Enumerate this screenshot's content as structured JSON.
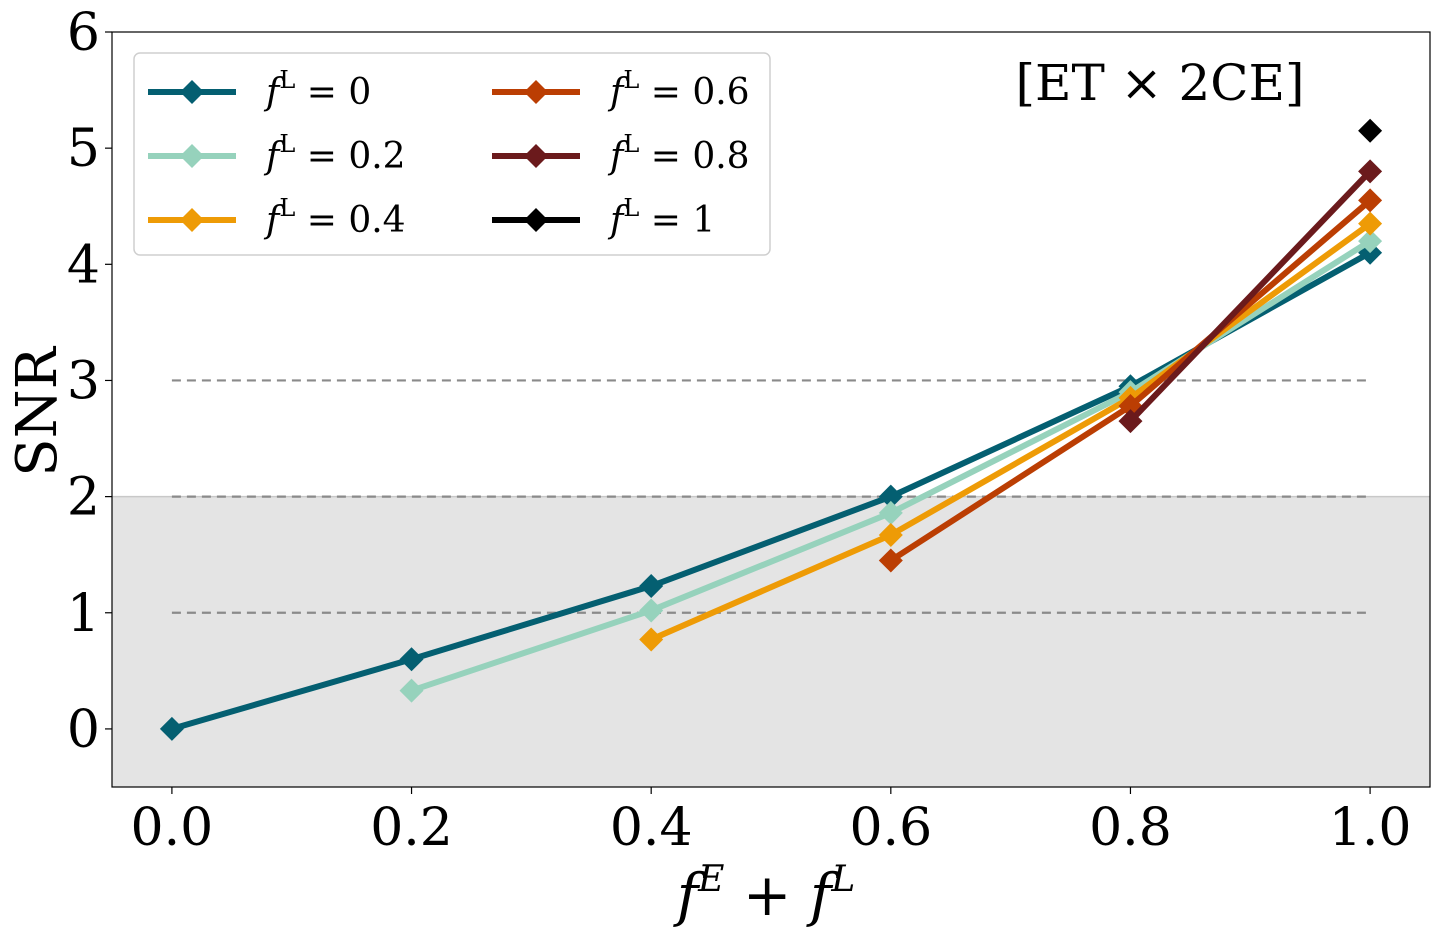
{
  "chart_data": {
    "type": "line",
    "annotation": "[ET × 2CE]",
    "xlabel": {
      "base1": "f",
      "sup1": "E",
      "op": " + ",
      "base2": "f",
      "sup2": "L"
    },
    "ylabel": "SNR",
    "xlim": [
      -0.05,
      1.05
    ],
    "ylim": [
      -0.5,
      6
    ],
    "xticks": [
      0.0,
      0.2,
      0.4,
      0.6,
      0.8,
      1.0
    ],
    "xtick_labels": [
      "0.0",
      "0.2",
      "0.4",
      "0.6",
      "0.8",
      "1.0"
    ],
    "yticks": [
      0,
      1,
      2,
      3,
      4,
      5,
      6
    ],
    "ytick_labels": [
      "0",
      "1",
      "2",
      "3",
      "4",
      "5",
      "6"
    ],
    "shaded_region": {
      "y_from": -0.5,
      "y_to": 2.0,
      "color": "#e4e4e4"
    },
    "reference_lines": [
      {
        "y": 1,
        "x_from": 0.0,
        "x_to": 1.0
      },
      {
        "y": 2,
        "x_from": 0.0,
        "x_to": 1.0
      },
      {
        "y": 3,
        "x_from": 0.0,
        "x_to": 1.0
      }
    ],
    "grid": false,
    "legend_position": "top-left",
    "legend_columns": 2,
    "series": [
      {
        "name": "0",
        "color": "#045f71",
        "x": [
          0.0,
          0.2,
          0.4,
          0.6,
          0.8,
          1.0
        ],
        "y": [
          0.0,
          0.6,
          1.23,
          2.0,
          2.95,
          4.1
        ]
      },
      {
        "name": "0.2",
        "color": "#96d2bc",
        "x": [
          0.2,
          0.4,
          0.6,
          0.8,
          1.0
        ],
        "y": [
          0.33,
          1.02,
          1.86,
          2.9,
          4.2
        ]
      },
      {
        "name": "0.4",
        "color": "#ee9b06",
        "x": [
          0.4,
          0.6,
          0.8,
          1.0
        ],
        "y": [
          0.77,
          1.67,
          2.85,
          4.35
        ]
      },
      {
        "name": "0.6",
        "color": "#bb3e03",
        "x": [
          0.6,
          0.8,
          1.0
        ],
        "y": [
          1.45,
          2.78,
          4.55
        ]
      },
      {
        "name": "0.8",
        "color": "#6b1a1c",
        "x": [
          0.8,
          1.0
        ],
        "y": [
          2.65,
          4.8
        ]
      },
      {
        "name": "1",
        "color": "#000000",
        "x": [
          1.0
        ],
        "y": [
          5.15
        ]
      }
    ],
    "legend_prefix": {
      "base": "f",
      "sup": "L",
      "eq": " = "
    }
  }
}
